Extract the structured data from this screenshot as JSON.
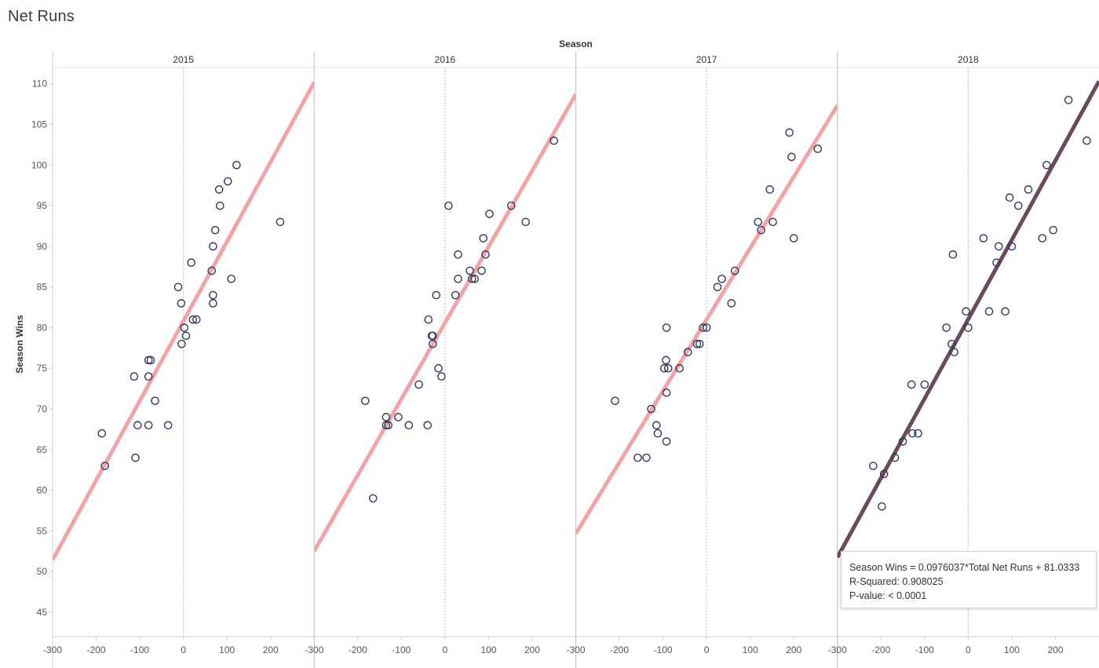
{
  "sheet": {
    "title": "Net Runs"
  },
  "chart_data": {
    "type": "scatter",
    "column_header": "Season",
    "ylabel": "Season Wins",
    "xlabel": "",
    "xlim": [
      -300,
      300
    ],
    "ylim": [
      42,
      112
    ],
    "x_ticks": [
      -300,
      -200,
      -100,
      0,
      100,
      200
    ],
    "y_ticks": [
      45,
      50,
      55,
      60,
      65,
      70,
      75,
      80,
      85,
      90,
      95,
      100,
      105,
      110
    ],
    "trend_line_color": "#f2a3a8",
    "trend_line_highlight_color": "#6b4a5e",
    "point_stroke_color": "#343a5a",
    "panels": [
      {
        "season": "2015",
        "trend": {
          "slope": 0.0979,
          "intercept": 80.8
        },
        "points": [
          [
            -187,
            67
          ],
          [
            -180,
            63
          ],
          [
            -113,
            74
          ],
          [
            -110,
            64
          ],
          [
            -105,
            68
          ],
          [
            -80,
            76
          ],
          [
            -75,
            76
          ],
          [
            -80,
            74
          ],
          [
            -80,
            68
          ],
          [
            -65,
            71
          ],
          [
            -35,
            68
          ],
          [
            -12,
            85
          ],
          [
            -5,
            83
          ],
          [
            -4,
            78
          ],
          [
            2,
            80
          ],
          [
            6,
            79
          ],
          [
            18,
            88
          ],
          [
            22,
            81
          ],
          [
            30,
            81
          ],
          [
            65,
            87
          ],
          [
            68,
            90
          ],
          [
            68,
            84
          ],
          [
            68,
            83
          ],
          [
            73,
            92
          ],
          [
            82,
            97
          ],
          [
            84,
            95
          ],
          [
            102,
            98
          ],
          [
            110,
            86
          ],
          [
            122,
            100
          ],
          [
            222,
            93
          ]
        ]
      },
      {
        "season": "2016",
        "trend": {
          "slope": 0.0936,
          "intercept": 80.6
        },
        "points": [
          [
            -183,
            71
          ],
          [
            -165,
            59
          ],
          [
            -135,
            69
          ],
          [
            -135,
            68
          ],
          [
            -130,
            68
          ],
          [
            -107,
            69
          ],
          [
            -83,
            68
          ],
          [
            -60,
            73
          ],
          [
            -40,
            68
          ],
          [
            -38,
            81
          ],
          [
            -30,
            79
          ],
          [
            -28,
            79
          ],
          [
            -28,
            78
          ],
          [
            -20,
            84
          ],
          [
            -15,
            75
          ],
          [
            -8,
            74
          ],
          [
            8,
            95
          ],
          [
            24,
            84
          ],
          [
            30,
            89
          ],
          [
            30,
            86
          ],
          [
            57,
            87
          ],
          [
            62,
            86
          ],
          [
            68,
            86
          ],
          [
            84,
            87
          ],
          [
            88,
            91
          ],
          [
            93,
            89
          ],
          [
            102,
            94
          ],
          [
            152,
            95
          ],
          [
            185,
            93
          ],
          [
            250,
            103
          ]
        ]
      },
      {
        "season": "2017",
        "trend": {
          "slope": 0.0878,
          "intercept": 81.0
        },
        "points": [
          [
            -210,
            71
          ],
          [
            -158,
            64
          ],
          [
            -138,
            64
          ],
          [
            -127,
            70
          ],
          [
            -115,
            68
          ],
          [
            -112,
            67
          ],
          [
            -97,
            75
          ],
          [
            -93,
            76
          ],
          [
            -92,
            80
          ],
          [
            -92,
            72
          ],
          [
            -92,
            66
          ],
          [
            -88,
            75
          ],
          [
            -62,
            75
          ],
          [
            -43,
            77
          ],
          [
            -22,
            78
          ],
          [
            -16,
            78
          ],
          [
            -8,
            80
          ],
          [
            0,
            80
          ],
          [
            25,
            85
          ],
          [
            35,
            86
          ],
          [
            57,
            83
          ],
          [
            65,
            87
          ],
          [
            118,
            93
          ],
          [
            125,
            92
          ],
          [
            145,
            97
          ],
          [
            152,
            93
          ],
          [
            190,
            104
          ],
          [
            195,
            101
          ],
          [
            200,
            91
          ],
          [
            255,
            102
          ]
        ]
      },
      {
        "season": "2018",
        "trend": {
          "slope": 0.0976037,
          "intercept": 81.0333
        },
        "points": [
          [
            -218,
            63
          ],
          [
            -198,
            58
          ],
          [
            -193,
            62
          ],
          [
            -168,
            64
          ],
          [
            -150,
            66
          ],
          [
            -130,
            73
          ],
          [
            -128,
            67
          ],
          [
            -115,
            67
          ],
          [
            -100,
            73
          ],
          [
            -50,
            80
          ],
          [
            -38,
            78
          ],
          [
            -35,
            89
          ],
          [
            -32,
            77
          ],
          [
            -5,
            82
          ],
          [
            0,
            80
          ],
          [
            35,
            91
          ],
          [
            48,
            82
          ],
          [
            65,
            88
          ],
          [
            70,
            90
          ],
          [
            85,
            82
          ],
          [
            95,
            96
          ],
          [
            100,
            90
          ],
          [
            115,
            95
          ],
          [
            138,
            97
          ],
          [
            170,
            91
          ],
          [
            180,
            100
          ],
          [
            195,
            92
          ],
          [
            230,
            108
          ],
          [
            272,
            103
          ]
        ]
      }
    ]
  },
  "tooltip": {
    "equation": "Season Wins = 0.0976037*Total Net Runs + 81.0333",
    "r_squared": "R-Squared: 0.908025",
    "p_value": "P-value: < 0.0001"
  }
}
